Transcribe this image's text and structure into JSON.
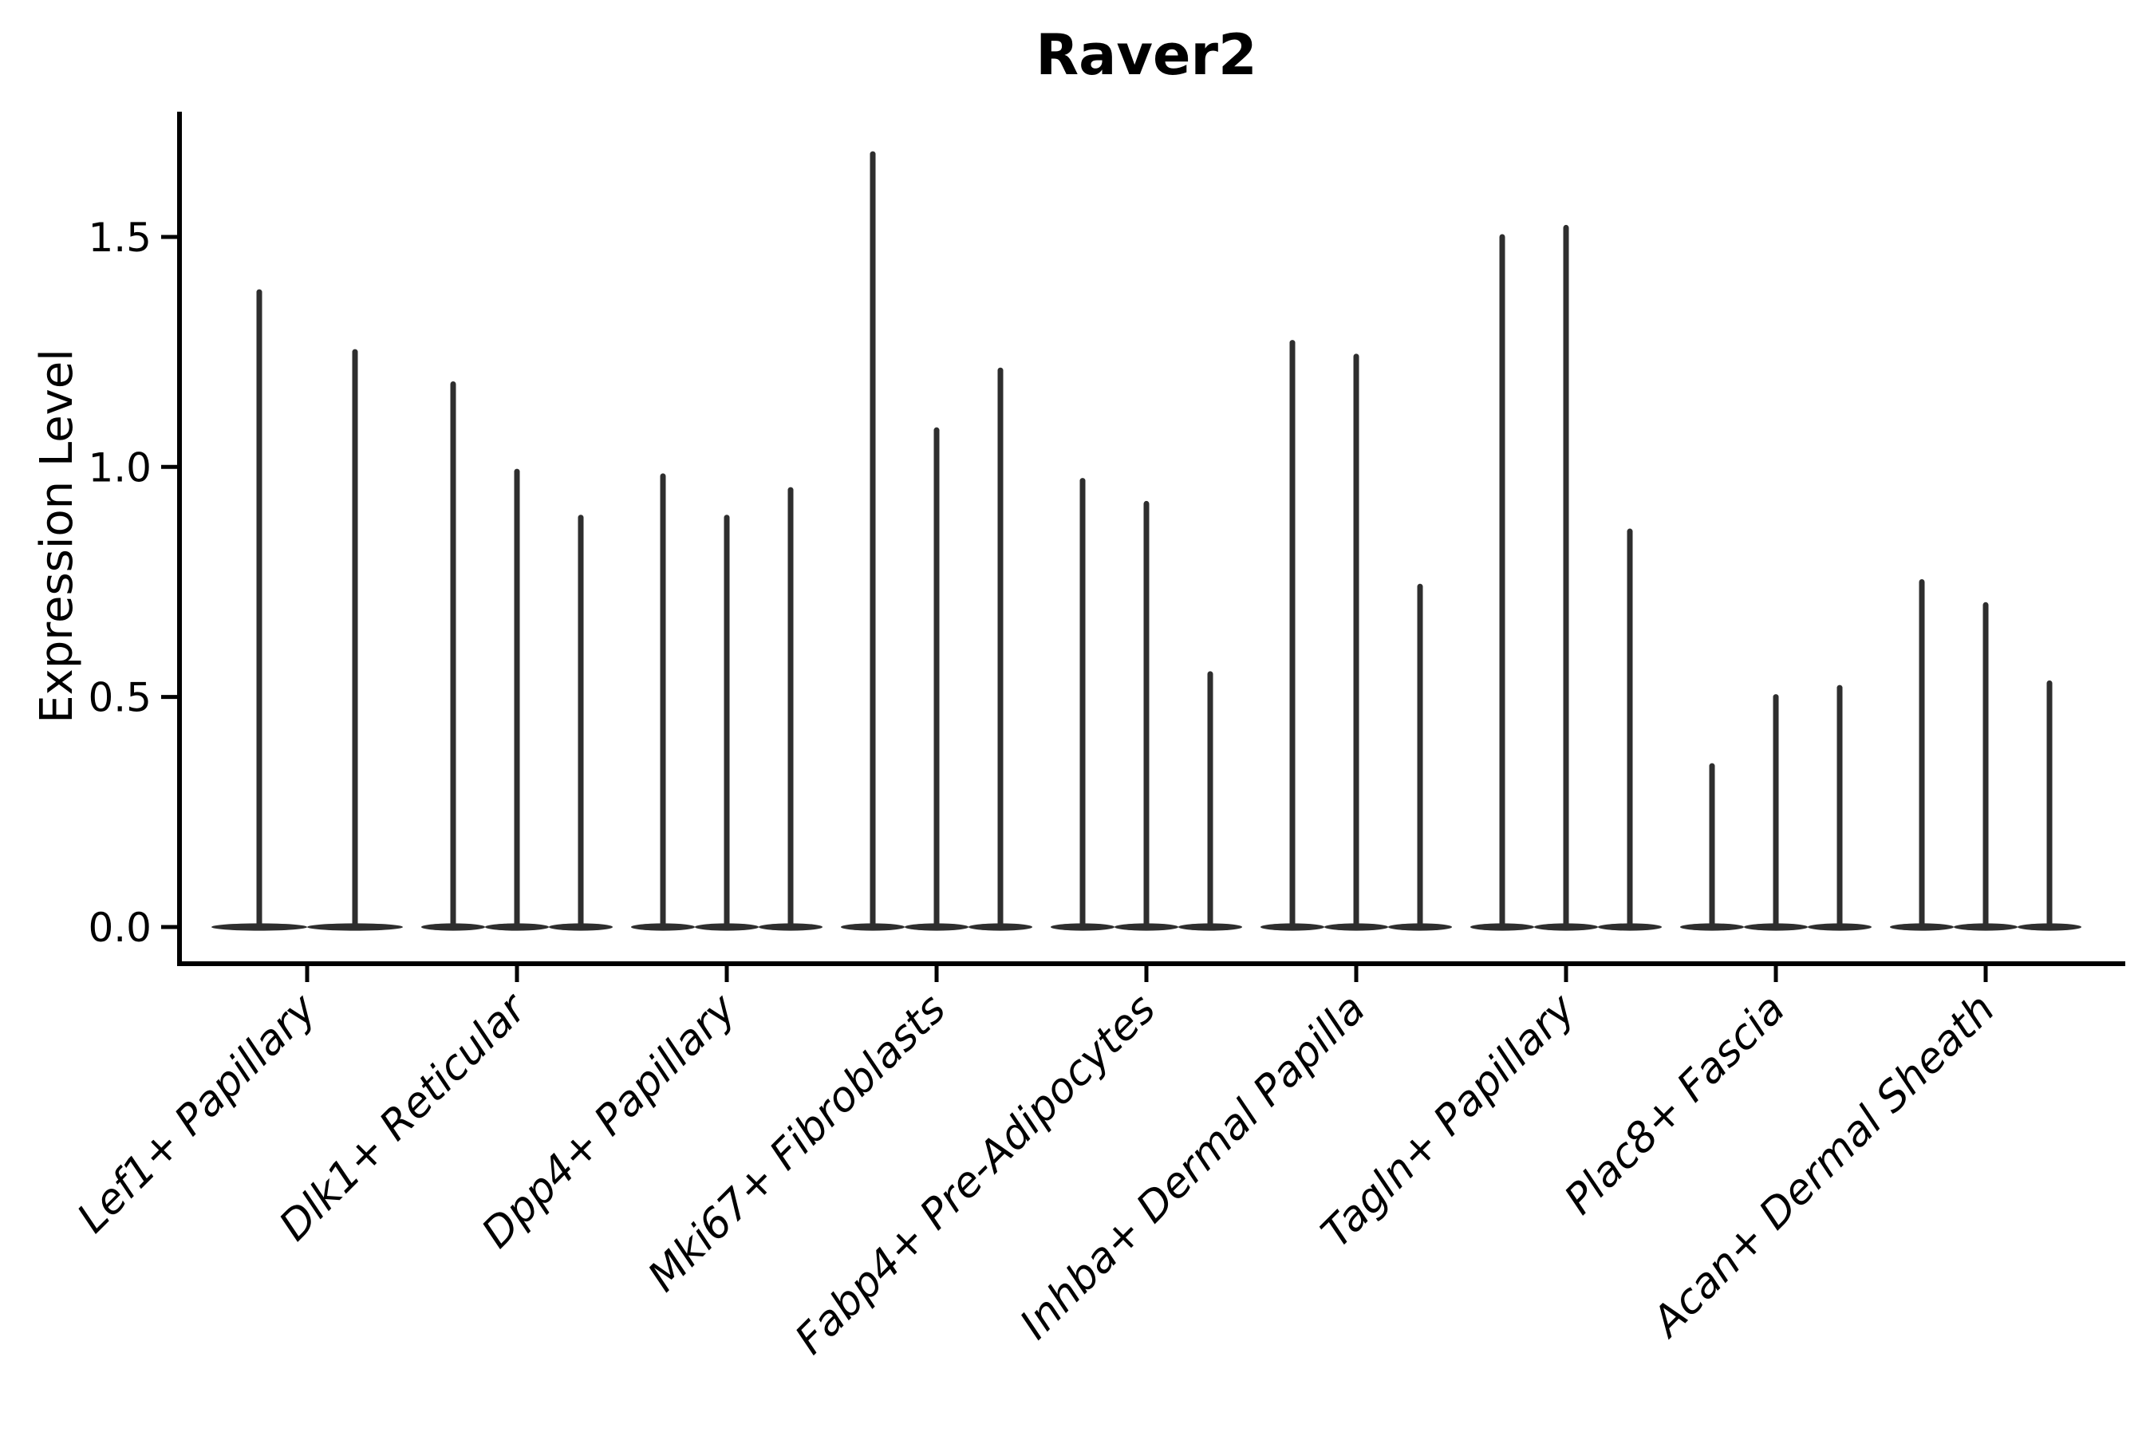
{
  "chart_data": {
    "type": "violin",
    "title": "Raver2",
    "ylabel": "Expression Level",
    "xlabel": "",
    "ytick_labels": [
      "0.0",
      "0.5",
      "1.0",
      "1.5"
    ],
    "ytick_values": [
      0.0,
      0.5,
      1.0,
      1.5
    ],
    "ylim": [
      -0.08,
      1.77
    ],
    "grid": false,
    "legend": false,
    "violin_color": "#2e2e2e",
    "axis_color": "#000000",
    "categories": [
      "Lef1+ Papillary",
      "Dlk1+ Reticular",
      "Dpp4+ Papillary",
      "Mki67+ Fibroblasts",
      "Fabp4+ Pre-Adipocytes",
      "Inhba+ Dermal Papilla",
      "Tagln+ Papillary",
      "Plac8+ Fascia",
      "Acan+ Dermal Sheath"
    ],
    "groups": [
      {
        "label": "Lef1+ Papillary",
        "violin_maxima": [
          1.38,
          1.25
        ]
      },
      {
        "label": "Dlk1+ Reticular",
        "violin_maxima": [
          1.18,
          0.99,
          0.89
        ]
      },
      {
        "label": "Dpp4+ Papillary",
        "violin_maxima": [
          0.98,
          0.89,
          0.95
        ]
      },
      {
        "label": "Mki67+ Fibroblasts",
        "violin_maxima": [
          1.68,
          1.08,
          1.21
        ]
      },
      {
        "label": "Fabp4+ Pre-Adipocytes",
        "violin_maxima": [
          0.97,
          0.92,
          0.55
        ]
      },
      {
        "label": "Inhba+ Dermal Papilla",
        "violin_maxima": [
          1.27,
          1.24,
          0.74
        ]
      },
      {
        "label": "Tagln+ Papillary",
        "violin_maxima": [
          1.5,
          1.52,
          0.86
        ]
      },
      {
        "label": "Plac8+ Fascia",
        "violin_maxima": [
          0.35,
          0.5,
          0.52
        ]
      },
      {
        "label": "Acan+ Dermal Sheath",
        "violin_maxima": [
          0.75,
          0.7,
          0.53
        ]
      }
    ]
  }
}
